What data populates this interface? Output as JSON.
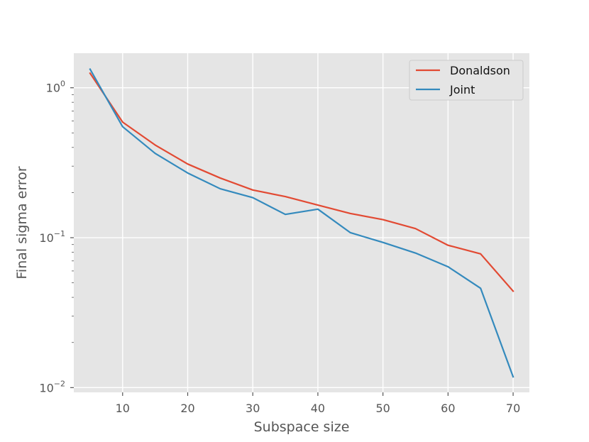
{
  "chart_data": {
    "type": "line",
    "title": "",
    "xlabel": "Subspace size",
    "ylabel": "Final sigma error",
    "x": [
      5,
      10,
      15,
      20,
      25,
      30,
      35,
      40,
      45,
      50,
      55,
      60,
      65,
      70
    ],
    "xlim": [
      2.5,
      72.5
    ],
    "ylim": [
      0.0093,
      1.7
    ],
    "yscale": "log",
    "xticks": [
      10,
      20,
      30,
      40,
      50,
      60,
      70
    ],
    "xtick_labels": [
      "10",
      "20",
      "30",
      "40",
      "50",
      "60",
      "70"
    ],
    "yticks": [
      0.01,
      0.1,
      1
    ],
    "ytick_labels": [
      {
        "base": "10",
        "exp": "−2"
      },
      {
        "base": "10",
        "exp": "−1"
      },
      {
        "base": "10",
        "exp": "0"
      }
    ],
    "grid": true,
    "legend_position": "top-right",
    "series": [
      {
        "name": "Donaldson",
        "color": "#E24A33",
        "values": [
          1.25,
          0.59,
          0.415,
          0.31,
          0.25,
          0.208,
          0.188,
          0.165,
          0.145,
          0.132,
          0.115,
          0.089,
          0.078,
          0.044
        ]
      },
      {
        "name": "Joint",
        "color": "#348ABD",
        "values": [
          1.33,
          0.55,
          0.365,
          0.27,
          0.212,
          0.185,
          0.143,
          0.155,
          0.108,
          0.093,
          0.079,
          0.064,
          0.046,
          0.0118
        ]
      }
    ]
  }
}
